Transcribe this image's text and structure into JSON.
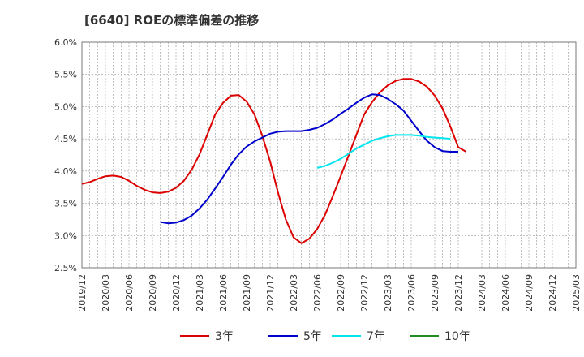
{
  "chart_data": {
    "type": "line",
    "title": "[6640]  ROEの標準偏差の推移",
    "xlabel": "",
    "ylabel": "",
    "ylim": [
      2.5,
      6.0
    ],
    "y_ticks": [
      "2.5%",
      "3.0%",
      "3.5%",
      "4.0%",
      "4.5%",
      "5.0%",
      "5.5%",
      "6.0%"
    ],
    "y_tick_values": [
      2.5,
      3.0,
      3.5,
      4.0,
      4.5,
      5.0,
      5.5,
      6.0
    ],
    "x_ticks": [
      "2019/12",
      "2020/03",
      "2020/06",
      "2020/09",
      "2020/12",
      "2021/03",
      "2021/06",
      "2021/09",
      "2021/12",
      "2022/03",
      "2022/06",
      "2022/09",
      "2022/12",
      "2023/03",
      "2023/06",
      "2023/09",
      "2023/12",
      "2024/03",
      "2024/06",
      "2024/09",
      "2024/12",
      "2025/03"
    ],
    "grid": true,
    "legend_position": "bottom",
    "series": [
      {
        "name": "3年",
        "color": "#dd0000",
        "start_index": 0,
        "values": [
          3.8,
          3.83,
          3.88,
          3.92,
          3.93,
          3.91,
          3.85,
          3.77,
          3.71,
          3.67,
          3.66,
          3.68,
          3.74,
          3.85,
          4.02,
          4.26,
          4.57,
          4.88,
          5.06,
          5.17,
          5.18,
          5.08,
          4.88,
          4.55,
          4.15,
          3.67,
          3.25,
          2.97,
          2.88,
          2.95,
          3.1,
          3.32,
          3.61,
          3.92,
          4.24,
          4.56,
          4.88,
          5.07,
          5.22,
          5.33,
          5.4,
          5.43,
          5.43,
          5.39,
          5.31,
          5.17,
          4.97,
          4.69,
          4.37,
          4.3
        ]
      },
      {
        "name": "5年",
        "color": "#0000cc",
        "start_index": 10,
        "values": [
          3.21,
          3.19,
          3.2,
          3.24,
          3.31,
          3.42,
          3.56,
          3.73,
          3.91,
          4.1,
          4.26,
          4.38,
          4.46,
          4.52,
          4.58,
          4.61,
          4.62,
          4.62,
          4.62,
          4.64,
          4.67,
          4.73,
          4.8,
          4.89,
          4.97,
          5.06,
          5.14,
          5.19,
          5.18,
          5.12,
          5.04,
          4.94,
          4.78,
          4.62,
          4.47,
          4.37,
          4.31,
          4.3,
          4.3
        ]
      },
      {
        "name": "7年",
        "color": "#00e5ee",
        "start_index": 30,
        "values": [
          4.05,
          4.08,
          4.13,
          4.19,
          4.27,
          4.35,
          4.41,
          4.47,
          4.51,
          4.54,
          4.56,
          4.56,
          4.56,
          4.55,
          4.53,
          4.52,
          4.51,
          4.5
        ]
      },
      {
        "name": "10年",
        "color": "#228b22",
        "start_index": 0,
        "values": []
      }
    ]
  }
}
